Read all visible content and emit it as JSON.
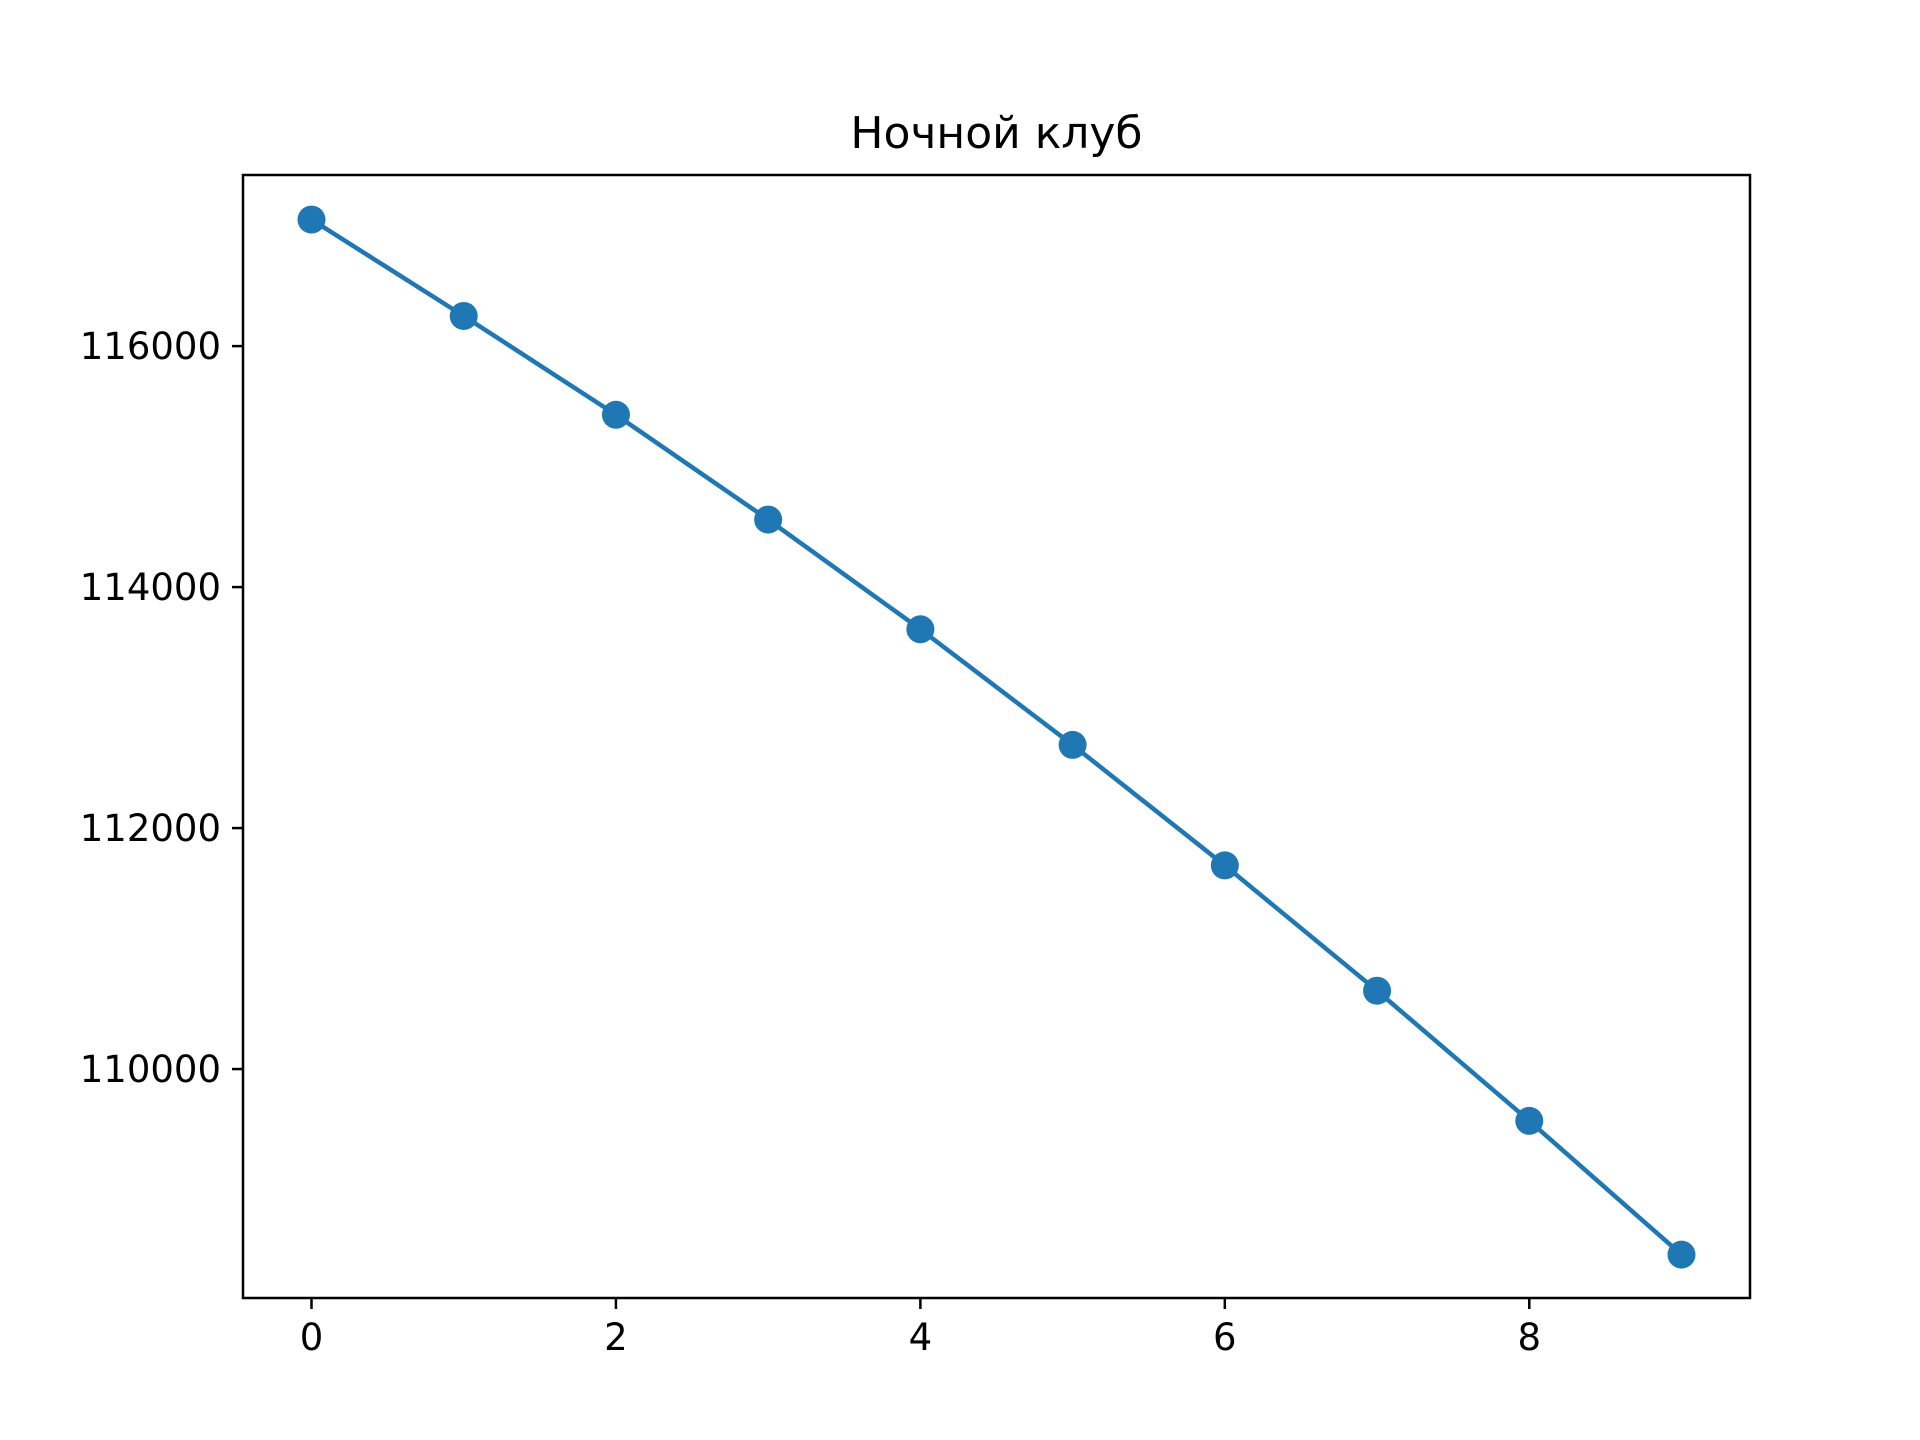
{
  "chart_data": {
    "type": "line",
    "title": "Ночной клуб",
    "xlabel": "",
    "ylabel": "",
    "x": [
      0,
      1,
      2,
      3,
      4,
      5,
      6,
      7,
      8,
      9
    ],
    "series": [
      {
        "values": [
          117050,
          116250,
          115430,
          114560,
          113650,
          112690,
          111690,
          110650,
          109570,
          108460
        ],
        "color": "#1f77b4",
        "marker": "circle"
      }
    ],
    "xlim": [
      -0.45,
      9.45
    ],
    "ylim": [
      108100,
      117420
    ],
    "x_ticks": [
      0,
      2,
      4,
      6,
      8
    ],
    "x_tick_labels": [
      "0",
      "2",
      "4",
      "6",
      "8"
    ],
    "y_ticks": [
      110000,
      112000,
      114000,
      116000
    ],
    "y_tick_labels": [
      "110000",
      "112000",
      "114000",
      "116000"
    ],
    "grid": false,
    "legend": false
  }
}
